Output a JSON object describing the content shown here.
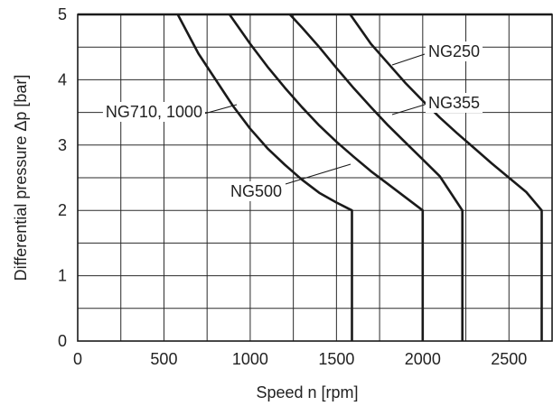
{
  "chart_data": {
    "type": "line",
    "title": "",
    "xlabel": "Speed n [rpm]",
    "ylabel": "Differential pressure Δp [bar]",
    "xlim": [
      0,
      2750
    ],
    "ylim": [
      0,
      5
    ],
    "x_ticks": [
      0,
      500,
      1000,
      1500,
      2000,
      2500
    ],
    "y_ticks": [
      0,
      1,
      2,
      3,
      4,
      5
    ],
    "grid": true,
    "series": [
      {
        "name": "NG710, 1000",
        "points": [
          [
            580,
            5.0
          ],
          [
            700,
            4.4
          ],
          [
            800,
            4.0
          ],
          [
            900,
            3.6
          ],
          [
            1000,
            3.25
          ],
          [
            1100,
            2.95
          ],
          [
            1200,
            2.7
          ],
          [
            1300,
            2.47
          ],
          [
            1400,
            2.27
          ],
          [
            1500,
            2.12
          ],
          [
            1590,
            2.0
          ],
          [
            1590,
            0.0
          ]
        ]
      },
      {
        "name": "NG500",
        "points": [
          [
            880,
            5.0
          ],
          [
            1000,
            4.55
          ],
          [
            1100,
            4.2
          ],
          [
            1200,
            3.88
          ],
          [
            1300,
            3.58
          ],
          [
            1400,
            3.3
          ],
          [
            1500,
            3.05
          ],
          [
            1600,
            2.82
          ],
          [
            1700,
            2.6
          ],
          [
            1800,
            2.4
          ],
          [
            1900,
            2.2
          ],
          [
            2000,
            2.0
          ],
          [
            2000,
            0.0
          ]
        ]
      },
      {
        "name": "NG355",
        "points": [
          [
            1230,
            5.0
          ],
          [
            1300,
            4.8
          ],
          [
            1400,
            4.5
          ],
          [
            1500,
            4.18
          ],
          [
            1600,
            3.87
          ],
          [
            1700,
            3.58
          ],
          [
            1800,
            3.3
          ],
          [
            1900,
            3.04
          ],
          [
            2000,
            2.78
          ],
          [
            2100,
            2.52
          ],
          [
            2230,
            2.0
          ],
          [
            2230,
            0.0
          ]
        ]
      },
      {
        "name": "NG250",
        "points": [
          [
            1580,
            5.0
          ],
          [
            1700,
            4.55
          ],
          [
            1800,
            4.25
          ],
          [
            1900,
            3.95
          ],
          [
            2000,
            3.68
          ],
          [
            2100,
            3.42
          ],
          [
            2200,
            3.18
          ],
          [
            2300,
            2.95
          ],
          [
            2400,
            2.72
          ],
          [
            2500,
            2.5
          ],
          [
            2600,
            2.28
          ],
          [
            2690,
            2.0
          ],
          [
            2690,
            0.0
          ]
        ]
      }
    ],
    "annotations": [
      {
        "text": "NG250",
        "series": "NG250",
        "x": 2355,
        "y": 4.6
      },
      {
        "text": "NG355",
        "series": "NG355",
        "x": 2355,
        "y": 3.6
      },
      {
        "text": "NG710, 1000",
        "series": "NG710, 1000",
        "x": 490,
        "y": 3.35
      },
      {
        "text": "NG500",
        "series": "NG500",
        "x": 1115,
        "y": 2.3
      }
    ]
  }
}
